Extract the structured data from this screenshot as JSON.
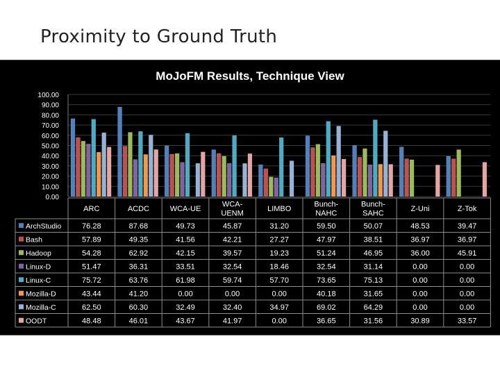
{
  "slide": {
    "title": "Proximity to Ground Truth"
  },
  "chart_data": {
    "type": "bar",
    "title": "MoJoFM Results, Technique View",
    "xlabel": "",
    "ylabel": "",
    "ylim": [
      0,
      100
    ],
    "yticks": [
      "0.00",
      "10.00",
      "20.00",
      "30.00",
      "40.00",
      "50.00",
      "60.00",
      "70.00",
      "80.00",
      "90.00",
      "100.00"
    ],
    "grid": true,
    "legend": "table-left",
    "categories": [
      "ARC",
      "ACDC",
      "WCA-UE",
      "WCA-UENM",
      "LIMBO",
      "Bunch-NAHC",
      "Bunch-SAHC",
      "Z-Uni",
      "Z-Tok"
    ],
    "category_lines": [
      [
        "ARC"
      ],
      [
        "ACDC"
      ],
      [
        "WCA-UE"
      ],
      [
        "WCA-",
        "UENM"
      ],
      [
        "LIMBO"
      ],
      [
        "Bunch-",
        "NAHC"
      ],
      [
        "Bunch-",
        "SAHC"
      ],
      [
        "Z-Uni"
      ],
      [
        "Z-Tok"
      ]
    ],
    "series": [
      {
        "name": "ArchStudio",
        "color": "#4f81bd",
        "values": [
          76.28,
          87.68,
          49.73,
          45.87,
          31.2,
          59.5,
          50.07,
          48.53,
          39.47
        ],
        "labels": [
          "76.28",
          "87.68",
          "49.73",
          "45.87",
          "31.20",
          "59.50",
          "50.07",
          "48.53",
          "39.47"
        ]
      },
      {
        "name": "Bash",
        "color": "#c0504d",
        "values": [
          57.89,
          49.35,
          41.56,
          42.21,
          27.27,
          47.97,
          38.51,
          36.97,
          36.97
        ],
        "labels": [
          "57.89",
          "49.35",
          "41.56",
          "42.21",
          "27.27",
          "47.97",
          "38.51",
          "36.97",
          "36.97"
        ]
      },
      {
        "name": "Hadoop",
        "color": "#9bbb59",
        "values": [
          54.28,
          62.92,
          42.15,
          39.57,
          19.23,
          51.24,
          46.95,
          36.0,
          45.91
        ],
        "labels": [
          "54.28",
          "62.92",
          "42.15",
          "39.57",
          "19.23",
          "51.24",
          "46.95",
          "36.00",
          "45.91"
        ]
      },
      {
        "name": "Linux-D",
        "color": "#8064a2",
        "values": [
          51.47,
          36.31,
          33.51,
          32.54,
          18.46,
          32.54,
          31.14,
          0.0,
          0.0
        ],
        "labels": [
          "51.47",
          "36.31",
          "33.51",
          "32.54",
          "18.46",
          "32.54",
          "31.14",
          "0.00",
          "0.00"
        ]
      },
      {
        "name": "Linux-C",
        "color": "#4bacc6",
        "values": [
          75.72,
          63.76,
          61.98,
          59.74,
          57.7,
          73.65,
          75.13,
          0.0,
          0.0
        ],
        "labels": [
          "75.72",
          "63.76",
          "61.98",
          "59.74",
          "57.70",
          "73.65",
          "75.13",
          "0.00",
          "0.00"
        ]
      },
      {
        "name": "Mozilla-D",
        "color": "#f79646",
        "values": [
          43.44,
          41.2,
          0.0,
          0.0,
          0.0,
          40.18,
          31.65,
          0.0,
          0.0
        ],
        "labels": [
          "43.44",
          "41.20",
          "0.00",
          "0.00",
          "0.00",
          "40.18",
          "31.65",
          "0.00",
          "0.00"
        ]
      },
      {
        "name": "Mozilla-C",
        "color": "#95b3d7",
        "values": [
          62.5,
          60.3,
          32.49,
          32.4,
          34.97,
          69.02,
          64.29,
          0.0,
          0.0
        ],
        "labels": [
          "62.50",
          "60.30",
          "32.49",
          "32.40",
          "34.97",
          "69.02",
          "64.29",
          "0.00",
          "0.00"
        ]
      },
      {
        "name": "OODT",
        "color": "#e6a5a3",
        "values": [
          48.48,
          46.01,
          43.67,
          41.97,
          0.0,
          36.65,
          31.56,
          30.89,
          33.57
        ],
        "labels": [
          "48.48",
          "46.01",
          "43.67",
          "41.97",
          "0.00",
          "36.65",
          "31.56",
          "30.89",
          "33.57"
        ]
      }
    ]
  }
}
